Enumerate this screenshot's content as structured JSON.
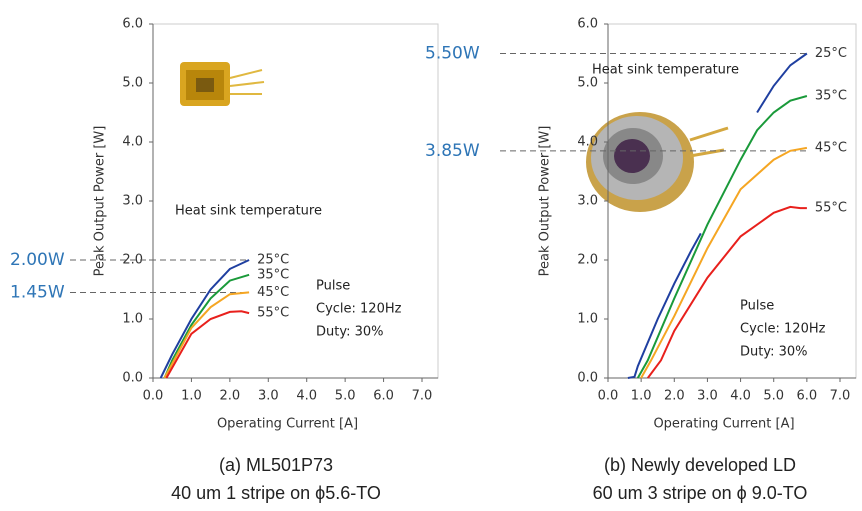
{
  "chart_data": [
    {
      "type": "line",
      "xlabel": "Operating Current [A]",
      "ylabel": "Peak Output Power [W]",
      "xlim": [
        0,
        7
      ],
      "ylim": [
        0,
        6
      ],
      "xticks": [
        {
          "value": 0,
          "label": "0.0"
        },
        {
          "value": 1,
          "label": "1.0"
        },
        {
          "value": 2,
          "label": "2.0"
        },
        {
          "value": 3,
          "label": "3.0"
        },
        {
          "value": 4,
          "label": "4.0"
        },
        {
          "value": 5,
          "label": "5.0"
        },
        {
          "value": 6,
          "label": "6.0"
        },
        {
          "value": 7,
          "label": "7.0"
        }
      ],
      "yticks": [
        {
          "value": 0,
          "label": "0.0"
        },
        {
          "value": 1,
          "label": "1.0"
        },
        {
          "value": 2,
          "label": "2.0"
        },
        {
          "value": 3,
          "label": "3.0"
        },
        {
          "value": 4,
          "label": "4.0"
        },
        {
          "value": 5,
          "label": "5.0"
        },
        {
          "value": 6,
          "label": "6.0"
        }
      ],
      "series": [
        {
          "name": "25°C",
          "color": "#1f3fa0",
          "x": [
            0.2,
            0.5,
            1.0,
            1.5,
            2.0,
            2.5
          ],
          "values": [
            0,
            0.4,
            1.0,
            1.5,
            1.85,
            2.0
          ]
        },
        {
          "name": "35°C",
          "color": "#1a9a3a",
          "x": [
            0.3,
            0.5,
            1.0,
            1.5,
            2.0,
            2.5
          ],
          "values": [
            0,
            0.3,
            0.9,
            1.35,
            1.65,
            1.75
          ]
        },
        {
          "name": "45°C",
          "color": "#f5a623",
          "x": [
            0.3,
            1.0,
            1.5,
            2.0,
            2.5
          ],
          "values": [
            0,
            0.85,
            1.2,
            1.42,
            1.45
          ]
        },
        {
          "name": "55°C",
          "color": "#e8201c",
          "x": [
            0.35,
            1.0,
            1.5,
            2.0,
            2.3,
            2.5
          ],
          "values": [
            0,
            0.75,
            1.0,
            1.12,
            1.13,
            1.1
          ]
        }
      ],
      "annotations": [
        "Heat sink temperature",
        "Pulse",
        "Cycle: 120Hz",
        "Duty: 30%"
      ],
      "markers": [
        {
          "value": 2.0,
          "label": "2.00W"
        },
        {
          "value": 1.45,
          "label": "1.45W"
        }
      ],
      "caption": [
        "(a)   ML501P73",
        "40 um 1 stripe on ϕ5.6-TO"
      ]
    },
    {
      "type": "line",
      "xlabel": "Operating Current [A]",
      "ylabel": "Peak Output Power [W]",
      "xlim": [
        0,
        7
      ],
      "ylim": [
        0,
        6
      ],
      "xticks": [
        {
          "value": 0,
          "label": "0.0"
        },
        {
          "value": 1,
          "label": "1.0"
        },
        {
          "value": 2,
          "label": "2.0"
        },
        {
          "value": 3,
          "label": "3.0"
        },
        {
          "value": 4,
          "label": "4.0"
        },
        {
          "value": 5,
          "label": "5.0"
        },
        {
          "value": 6,
          "label": "6.0"
        },
        {
          "value": 7,
          "label": "7.0"
        }
      ],
      "yticks": [
        {
          "value": 0,
          "label": "0.0"
        },
        {
          "value": 1,
          "label": "1.0"
        },
        {
          "value": 2,
          "label": "2.0"
        },
        {
          "value": 3,
          "label": "3.0"
        },
        {
          "value": 4,
          "label": "4.0"
        },
        {
          "value": 5,
          "label": "5.0"
        },
        {
          "value": 6,
          "label": "6.0"
        }
      ],
      "series": [
        {
          "name": "25°C",
          "color": "#1f3fa0",
          "x": [
            0.6,
            0.8,
            0.9,
            1.5,
            2.0,
            2.5,
            2.8,
            3.7,
            4.5,
            5.0,
            5.5,
            6.0
          ],
          "values": [
            0,
            0.02,
            0.2,
            1.0,
            1.6,
            2.15,
            2.45,
            null,
            4.5,
            4.95,
            5.3,
            5.5
          ]
        },
        {
          "name": "35°C",
          "color": "#1a9a3a",
          "x": [
            0.9,
            1.2,
            2.0,
            3.0,
            4.0,
            4.5,
            5.0,
            5.5,
            6.0
          ],
          "values": [
            0,
            0.3,
            1.35,
            2.6,
            3.7,
            4.2,
            4.5,
            4.7,
            4.78
          ]
        },
        {
          "name": "45°C",
          "color": "#f5a623",
          "x": [
            1.0,
            1.3,
            2.0,
            3.0,
            4.0,
            5.0,
            5.5,
            6.0
          ],
          "values": [
            0,
            0.3,
            1.05,
            2.2,
            3.2,
            3.7,
            3.85,
            3.9
          ]
        },
        {
          "name": "55°C",
          "color": "#e8201c",
          "x": [
            1.2,
            1.6,
            2.0,
            3.0,
            4.0,
            5.0,
            5.5,
            5.8,
            6.0
          ],
          "values": [
            0,
            0.3,
            0.8,
            1.7,
            2.4,
            2.8,
            2.9,
            2.88,
            2.88
          ]
        }
      ],
      "annotations": [
        "Heat sink temperature",
        "Pulse",
        "Cycle: 120Hz",
        "Duty: 30%"
      ],
      "markers": [
        {
          "value": 5.5,
          "label": "5.50W"
        },
        {
          "value": 3.85,
          "label": "3.85W"
        }
      ],
      "caption": [
        "(b) Newly developed LD",
        "60 um 3 stripe on ϕ 9.0-TO"
      ]
    }
  ]
}
